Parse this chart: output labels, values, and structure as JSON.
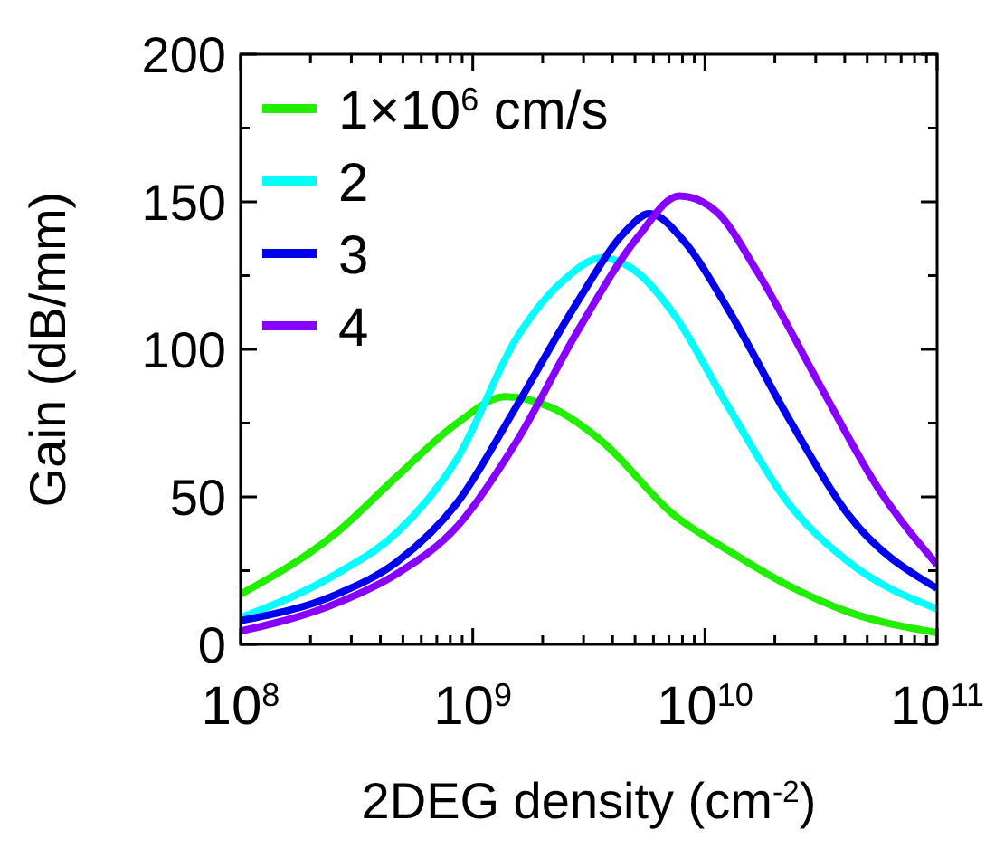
{
  "chart_data": {
    "type": "line",
    "xlabel": "2DEG density (cm$^{-2}$)",
    "ylabel": "Gain (dB/mm)",
    "log": "x",
    "xlim": [
      100000000.0,
      100000000000.0
    ],
    "ylim": [
      0,
      200
    ],
    "xticks": [
      {
        "value": 100000000.0,
        "label": "10$^{8}$"
      },
      {
        "value": 200000000.0,
        "label": null
      },
      {
        "value": 300000000.0,
        "label": null
      },
      {
        "value": 400000000.0,
        "label": null
      },
      {
        "value": 500000000.0,
        "label": null
      },
      {
        "value": 600000000.0,
        "label": null
      },
      {
        "value": 700000000.0,
        "label": null
      },
      {
        "value": 800000000.0,
        "label": null
      },
      {
        "value": 900000000.0,
        "label": null
      },
      {
        "value": 1000000000.0,
        "label": "10$^{9}$"
      },
      {
        "value": 2000000000.0,
        "label": null
      },
      {
        "value": 3000000000.0,
        "label": null
      },
      {
        "value": 4000000000.0,
        "label": null
      },
      {
        "value": 5000000000.0,
        "label": null
      },
      {
        "value": 6000000000.0,
        "label": null
      },
      {
        "value": 7000000000.0,
        "label": null
      },
      {
        "value": 8000000000.0,
        "label": null
      },
      {
        "value": 9000000000.0,
        "label": null
      },
      {
        "value": 10000000000.0,
        "label": "10$^{10}$"
      },
      {
        "value": 20000000000.0,
        "label": null
      },
      {
        "value": 30000000000.0,
        "label": null
      },
      {
        "value": 40000000000.0,
        "label": null
      },
      {
        "value": 50000000000.0,
        "label": null
      },
      {
        "value": 60000000000.0,
        "label": null
      },
      {
        "value": 70000000000.0,
        "label": null
      },
      {
        "value": 80000000000.0,
        "label": null
      },
      {
        "value": 90000000000.0,
        "label": null
      },
      {
        "value": 100000000000.0,
        "label": "10$^{11}$"
      }
    ],
    "yticks": [
      0,
      {
        "value": 25,
        "label": null
      },
      50,
      {
        "value": 75,
        "label": null
      },
      100,
      {
        "value": 125,
        "label": null
      },
      150,
      {
        "value": 175,
        "label": null
      },
      200
    ],
    "legend": "top left",
    "marker": "none",
    "line_style": "solid",
    "grid": false,
    "series": [
      {
        "name": "1×10$^{6}$ cm/s",
        "color": "#22ee00",
        "x": [
          100000000.0,
          260000000.0,
          472000000.0,
          857000000.0,
          1380000000.0,
          2220000000.0,
          3580000000.0,
          7330000000.0,
          12500000000.0,
          22800000000.0,
          41400000000.0,
          100000000000.0
        ],
        "values": [
          17,
          38,
          57,
          75,
          84,
          80,
          69,
          44,
          32,
          20,
          11,
          4
        ]
      },
      {
        "name": "2",
        "color": "#00ffff",
        "x": [
          100000000.0,
          260000000.0,
          472000000.0,
          857000000.0,
          1550000000.0,
          2510000000.0,
          3580000000.0,
          5130000000.0,
          7330000000.0,
          12500000000.0,
          22800000000.0,
          41400000000.0,
          100000000000.0
        ],
        "values": [
          9,
          24,
          38,
          63,
          104,
          124,
          131,
          126,
          112,
          81,
          48,
          28,
          12
        ]
      },
      {
        "name": "3",
        "color": "#0000ee",
        "x": [
          100000000.0,
          260000000.0,
          472000000.0,
          857000000.0,
          1550000000.0,
          2820000000.0,
          4550000000.0,
          5750000000.0,
          8260000000.0,
          12500000000.0,
          22800000000.0,
          41400000000.0,
          100000000000.0
        ],
        "values": [
          8,
          17,
          28,
          48,
          81,
          116,
          140,
          146,
          136,
          114,
          77,
          44,
          19
        ]
      },
      {
        "name": "4",
        "color": "#8800ff",
        "x": [
          100000000.0,
          260000000.0,
          472000000.0,
          857000000.0,
          1550000000.0,
          2820000000.0,
          5130000000.0,
          7760000000.0,
          11100000000.0,
          16900000000.0,
          30700000000.0,
          55700000000.0,
          100000000000.0
        ],
        "values": [
          4.5,
          14,
          24,
          40,
          69,
          106,
          138,
          152,
          147,
          126,
          89,
          53,
          27
        ]
      }
    ]
  }
}
